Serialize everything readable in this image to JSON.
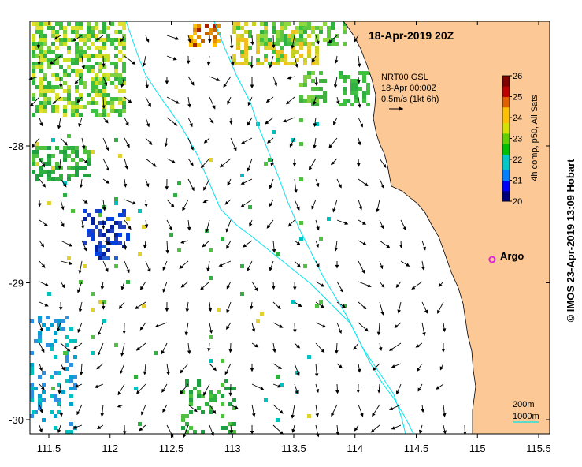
{
  "map": {
    "title": "18-Apr-2019 20Z",
    "credit": "© IMOS 23-Apr-2019 13:09 Hobart",
    "current_legend": {
      "line1": "NRT00 GSL",
      "line2": "18-Apr 00:00Z",
      "line3": "0.5m/s (1kt 6h)"
    },
    "colorbar": {
      "label": "4h comp, p50, All Sats",
      "min": 20,
      "max": 26,
      "ticks": [
        "20",
        "21",
        "22",
        "23",
        "24",
        "25",
        "26"
      ]
    },
    "argo_label": "Argo",
    "argo_lon": 115.12,
    "argo_lat": -28.83,
    "x_ticks": [
      {
        "value": 111.5,
        "label": "111.5"
      },
      {
        "value": 112,
        "label": "112"
      },
      {
        "value": 112.5,
        "label": "112.5"
      },
      {
        "value": 113,
        "label": "113"
      },
      {
        "value": 113.5,
        "label": "113.5"
      },
      {
        "value": 114,
        "label": "114"
      },
      {
        "value": 114.5,
        "label": "114.5"
      },
      {
        "value": 115,
        "label": "115"
      },
      {
        "value": 115.5,
        "label": "115.5"
      }
    ],
    "y_ticks": [
      {
        "value": -28,
        "label": "-28"
      },
      {
        "value": -29,
        "label": "-29"
      },
      {
        "value": -30,
        "label": "-30"
      }
    ],
    "isobath_legend": {
      "a": "200m",
      "b": "1000m"
    },
    "colors": {
      "land": "#fbc896",
      "isobath": "#00e5ee",
      "argo": "#e020e0"
    }
  }
}
